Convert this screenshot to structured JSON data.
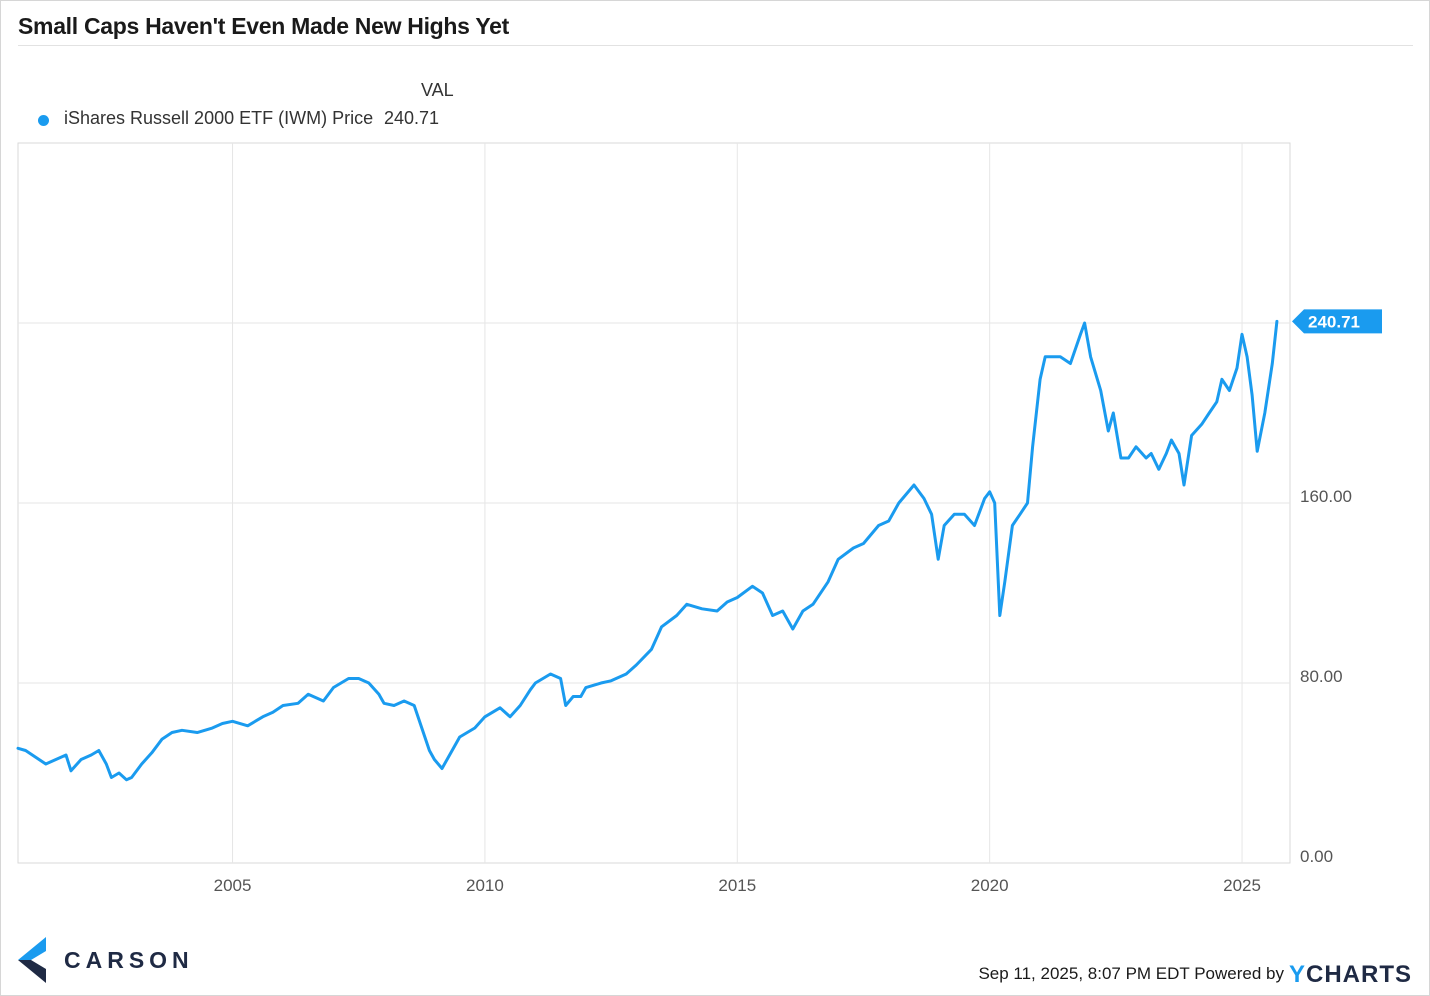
{
  "title": "Small Caps Haven't Even Made New Highs Yet",
  "legend": {
    "header": "VAL",
    "series_name": "iShares Russell 2000 ETF (IWM) Price",
    "series_value": "240.71"
  },
  "colors": {
    "series": "#1a9bef",
    "grid": "#e6e6e6",
    "axis_text": "#555555"
  },
  "chart_data": {
    "type": "line",
    "title": "Small Caps Haven't Even Made New Highs Yet",
    "xlabel": "",
    "ylabel": "",
    "xlim": [
      2000.75,
      2025.95
    ],
    "ylim": [
      0,
      320
    ],
    "x_ticks": [
      2005,
      2010,
      2015,
      2020,
      2025
    ],
    "y_ticks": [
      0,
      80,
      160
    ],
    "y_tick_labels": [
      "0.00",
      "80.00",
      "160.00"
    ],
    "grid": true,
    "last_value_label": "240.71",
    "series": [
      {
        "name": "iShares Russell 2000 ETF (IWM) Price",
        "x": [
          2000.75,
          2000.9,
          2001.1,
          2001.3,
          2001.5,
          2001.7,
          2001.8,
          2002.0,
          2002.2,
          2002.35,
          2002.5,
          2002.6,
          2002.75,
          2002.9,
          2003.0,
          2003.2,
          2003.4,
          2003.6,
          2003.8,
          2004.0,
          2004.3,
          2004.6,
          2004.8,
          2005.0,
          2005.3,
          2005.6,
          2005.8,
          2006.0,
          2006.3,
          2006.5,
          2006.8,
          2007.0,
          2007.3,
          2007.5,
          2007.7,
          2007.9,
          2008.0,
          2008.2,
          2008.4,
          2008.6,
          2008.75,
          2008.9,
          2009.0,
          2009.15,
          2009.3,
          2009.5,
          2009.8,
          2010.0,
          2010.3,
          2010.5,
          2010.7,
          2010.9,
          2011.0,
          2011.3,
          2011.5,
          2011.6,
          2011.75,
          2011.9,
          2012.0,
          2012.3,
          2012.5,
          2012.8,
          2013.0,
          2013.3,
          2013.5,
          2013.8,
          2014.0,
          2014.3,
          2014.6,
          2014.8,
          2015.0,
          2015.3,
          2015.5,
          2015.7,
          2015.9,
          2016.1,
          2016.3,
          2016.5,
          2016.8,
          2017.0,
          2017.3,
          2017.5,
          2017.8,
          2018.0,
          2018.2,
          2018.5,
          2018.7,
          2018.85,
          2018.98,
          2019.1,
          2019.3,
          2019.5,
          2019.7,
          2019.9,
          2020.0,
          2020.1,
          2020.2,
          2020.3,
          2020.45,
          2020.6,
          2020.75,
          2020.85,
          2021.0,
          2021.1,
          2021.2,
          2021.4,
          2021.6,
          2021.8,
          2021.88,
          2022.0,
          2022.2,
          2022.35,
          2022.45,
          2022.6,
          2022.75,
          2022.9,
          2023.1,
          2023.2,
          2023.35,
          2023.5,
          2023.6,
          2023.75,
          2023.85,
          2024.0,
          2024.2,
          2024.35,
          2024.5,
          2024.6,
          2024.75,
          2024.9,
          2025.0,
          2025.1,
          2025.2,
          2025.3,
          2025.45,
          2025.6,
          2025.69
        ],
        "values": [
          51,
          50,
          47,
          44,
          46,
          48,
          41,
          46,
          48,
          50,
          44,
          38,
          40,
          37,
          38,
          44,
          49,
          55,
          58,
          59,
          58,
          60,
          62,
          63,
          61,
          65,
          67,
          70,
          71,
          75,
          72,
          78,
          82,
          82,
          80,
          75,
          71,
          70,
          72,
          70,
          60,
          50,
          46,
          42,
          48,
          56,
          60,
          65,
          69,
          65,
          70,
          77,
          80,
          84,
          82,
          70,
          74,
          74,
          78,
          80,
          81,
          84,
          88,
          95,
          105,
          110,
          115,
          113,
          112,
          116,
          118,
          123,
          120,
          110,
          112,
          104,
          112,
          115,
          125,
          135,
          140,
          142,
          150,
          152,
          160,
          168,
          162,
          155,
          135,
          150,
          155,
          155,
          150,
          162,
          165,
          160,
          110,
          125,
          150,
          155,
          160,
          185,
          215,
          225,
          225,
          225,
          222,
          235,
          240,
          225,
          210,
          192,
          200,
          180,
          180,
          185,
          180,
          182,
          175,
          182,
          188,
          182,
          168,
          190,
          195,
          200,
          205,
          215,
          210,
          220,
          235,
          225,
          208,
          183,
          200,
          222,
          240.71
        ]
      }
    ]
  },
  "footer": {
    "timestamp": "Sep 11, 2025, 8:07 PM EDT Powered by",
    "ycharts_y": "Y",
    "ycharts_rest": "CHARTS",
    "brand": "CARSON"
  }
}
